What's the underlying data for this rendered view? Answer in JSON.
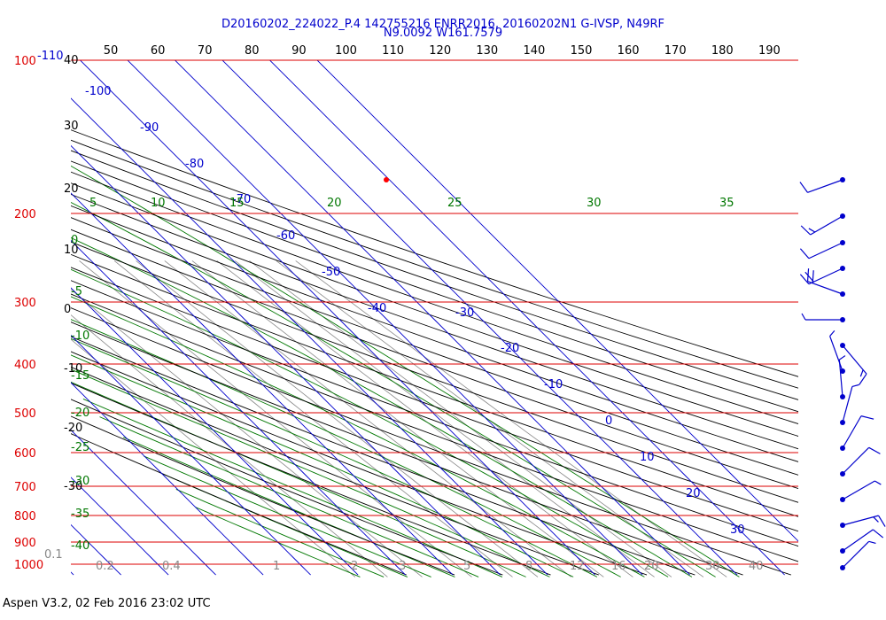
{
  "header": {
    "title_line1": "D20160202_224022_P.4 142755216 ENRR2016, 20160202N1 G-IVSP, N49RF",
    "title_line2": "N9.0092 W161.7579"
  },
  "footer": "Aspen V3.2, 02 Feb 2016  23:02 UTC",
  "colors": {
    "isobar": "#dd0000",
    "isotherm": "#0000cc",
    "dry_adiabat": "#000000",
    "moist_adiabat": "#007700",
    "mixing_ratio": "#888888",
    "sounding_point": "#ff0000",
    "wind_barb": "#0000cc"
  },
  "chart_data": {
    "type": "skew-t",
    "title": "D20160202_224022_P.4 142755216 ENRR2016, 20160202N1 G-IVSP, N49RF",
    "subtitle": "N9.0092 W161.7579",
    "pressure_levels_hpa": [
      "100",
      "200",
      "300",
      "400",
      "500",
      "600",
      "700",
      "800",
      "900",
      "1000"
    ],
    "pressure_range_hpa": [
      100,
      1000
    ],
    "top_pressure_extra_label": "-110",
    "height_labels_kft": [
      "40",
      "30",
      "20",
      "10",
      "0",
      "-10",
      "-20",
      "-30"
    ],
    "theta_labels_top": [
      "50",
      "60",
      "70",
      "80",
      "90",
      "100",
      "110",
      "120",
      "130",
      "140",
      "150",
      "160",
      "170",
      "180",
      "190"
    ],
    "isotherm_labels_c": [
      "-100",
      "-90",
      "-80",
      "-70",
      "-60",
      "-50",
      "-40",
      "-30",
      "-20",
      "-10",
      "0",
      "10",
      "20",
      "30"
    ],
    "moist_adiabat_labels_top": [
      "5",
      "10",
      "15",
      "20",
      "25",
      "30",
      "35"
    ],
    "moist_adiabat_labels_left": [
      "0",
      "-5",
      "-10",
      "-15",
      "-20",
      "-25",
      "-30",
      "-35",
      "-40"
    ],
    "mixing_ratio_labels": [
      "0.1",
      "0.2",
      "0.4",
      "1",
      "2",
      "3",
      "5",
      "8",
      "12",
      "16",
      "20",
      "30",
      "40"
    ],
    "sounding_point": {
      "pressure_hpa": 180,
      "temperature_c": -60
    },
    "wind_barbs": [
      {
        "pressure_hpa": 180,
        "speed_kt": 10,
        "direction_deg": 250
      },
      {
        "pressure_hpa": 205,
        "speed_kt": 15,
        "direction_deg": 240
      },
      {
        "pressure_hpa": 225,
        "speed_kt": 10,
        "direction_deg": 245
      },
      {
        "pressure_hpa": 245,
        "speed_kt": 20,
        "direction_deg": 245
      },
      {
        "pressure_hpa": 270,
        "speed_kt": 20,
        "direction_deg": 290
      },
      {
        "pressure_hpa": 300,
        "speed_kt": 5,
        "direction_deg": 270
      },
      {
        "pressure_hpa": 330,
        "speed_kt": 15,
        "direction_deg": 140
      },
      {
        "pressure_hpa": 360,
        "speed_kt": 5,
        "direction_deg": 340
      },
      {
        "pressure_hpa": 400,
        "speed_kt": 5,
        "direction_deg": 355
      },
      {
        "pressure_hpa": 450,
        "speed_kt": 5,
        "direction_deg": 15
      },
      {
        "pressure_hpa": 500,
        "speed_kt": 10,
        "direction_deg": 30
      },
      {
        "pressure_hpa": 560,
        "speed_kt": 10,
        "direction_deg": 45
      },
      {
        "pressure_hpa": 620,
        "speed_kt": 5,
        "direction_deg": 60
      },
      {
        "pressure_hpa": 700,
        "speed_kt": 15,
        "direction_deg": 75
      },
      {
        "pressure_hpa": 780,
        "speed_kt": 10,
        "direction_deg": 55
      },
      {
        "pressure_hpa": 860,
        "speed_kt": 5,
        "direction_deg": 45
      }
    ]
  }
}
